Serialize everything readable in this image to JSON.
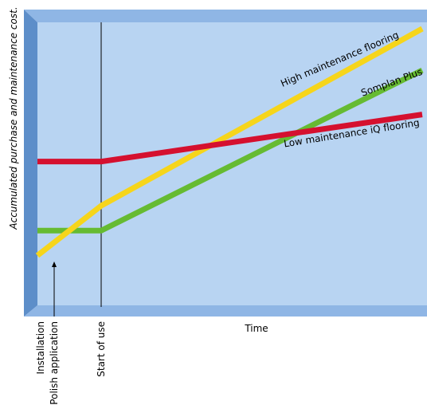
{
  "chart_data": {
    "type": "line",
    "title": "",
    "xlabel": "Time",
    "ylabel": "Accumulated purchase and maintenance cost.",
    "x_markers": [
      "Installation",
      "Polish application",
      "Start of use"
    ],
    "x": [
      0,
      1,
      2,
      5,
      10
    ],
    "ylim": [
      0,
      100
    ],
    "grid": false,
    "series": [
      {
        "name": "High maintenance flooring",
        "color": "#f6d51b",
        "x": [
          0,
          2,
          10
        ],
        "values": [
          18,
          36,
          100
        ]
      },
      {
        "name": "Somplan Plus",
        "color": "#66bb32",
        "x": [
          0,
          2,
          10
        ],
        "values": [
          27,
          27,
          85
        ]
      },
      {
        "name": "Low maintenance iQ flooring",
        "color": "#d5102f",
        "x": [
          0,
          2,
          10
        ],
        "values": [
          52,
          52,
          69
        ]
      }
    ],
    "colors": {
      "plot_background": "#b8d4f2",
      "frame_light": "#8fb6e5",
      "frame_dark": "#5d8ec9"
    }
  }
}
